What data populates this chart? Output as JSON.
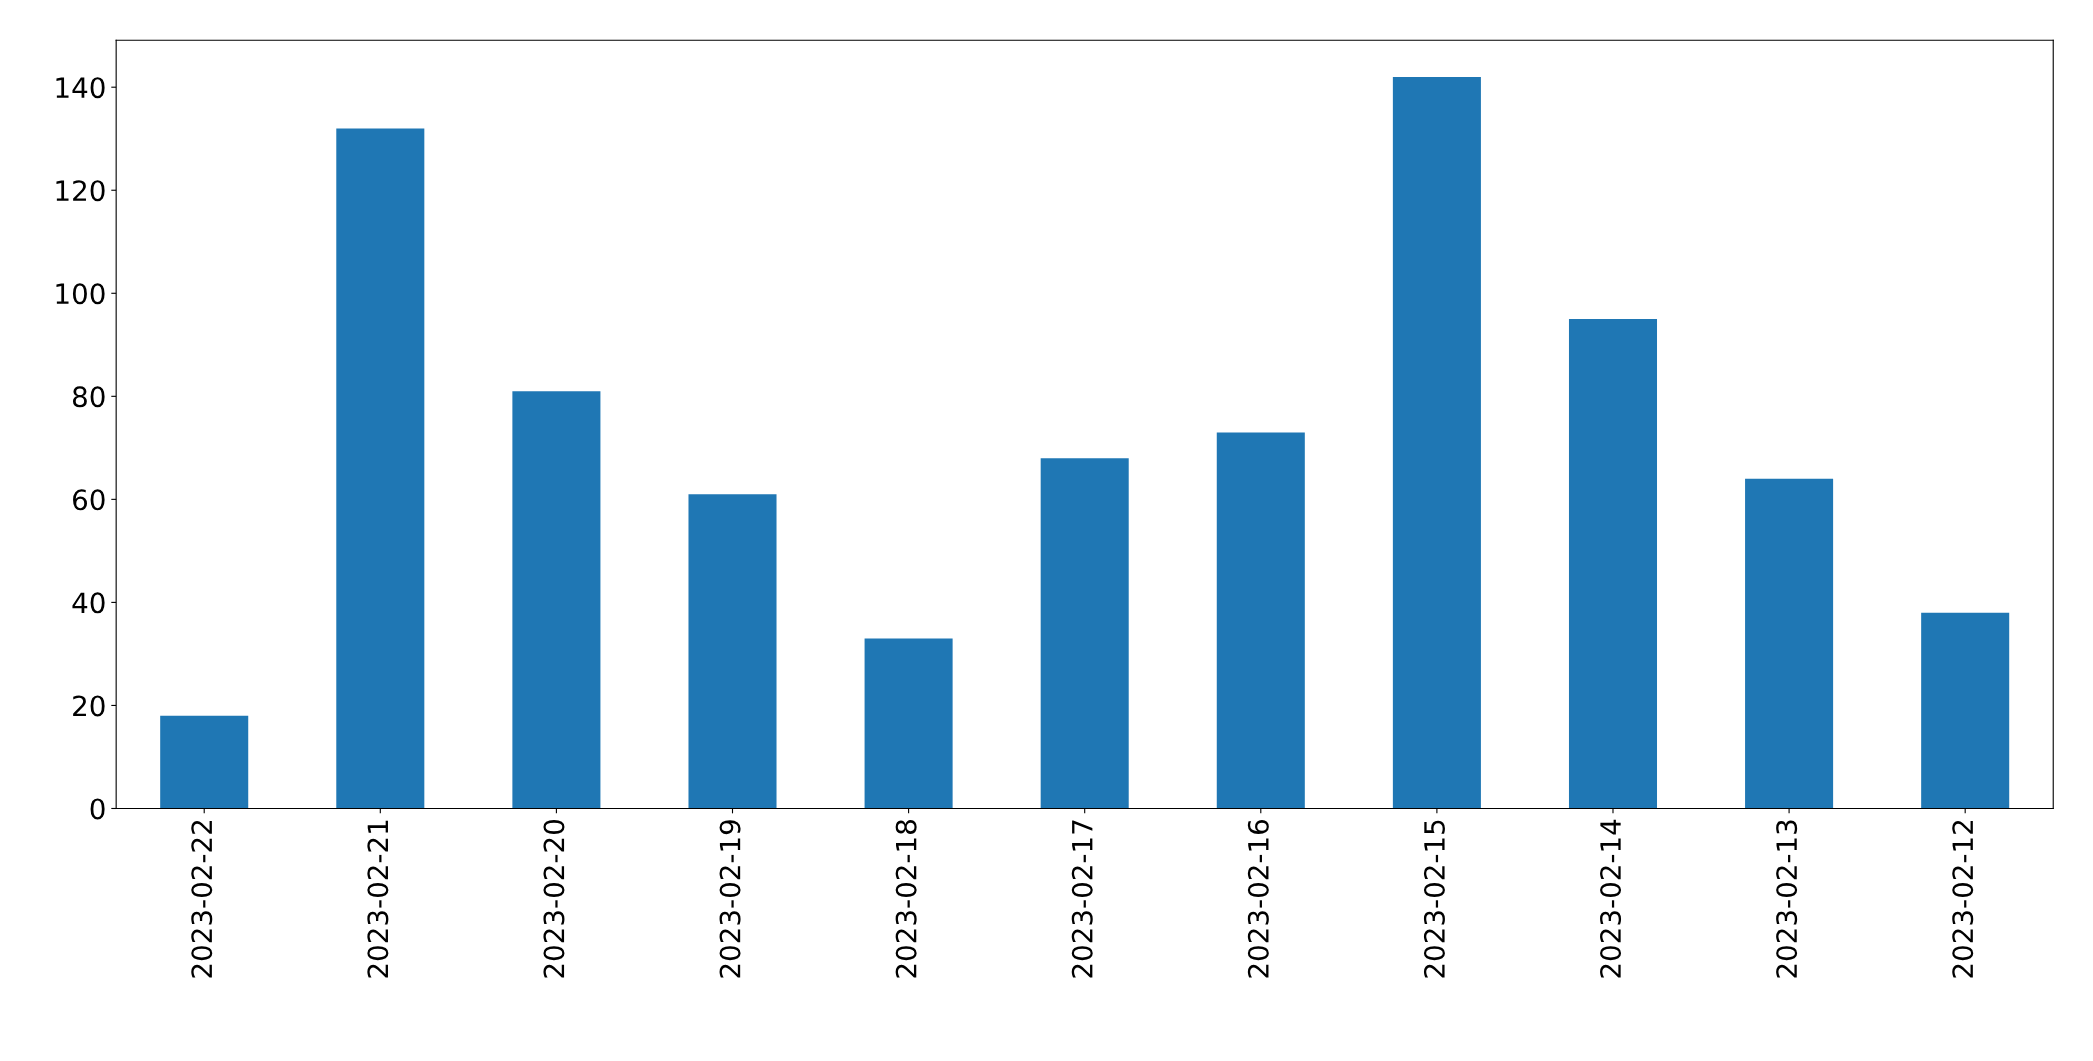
{
  "chart_data": {
    "type": "bar",
    "categories": [
      "2023-02-22",
      "2023-02-21",
      "2023-02-20",
      "2023-02-19",
      "2023-02-18",
      "2023-02-17",
      "2023-02-16",
      "2023-02-15",
      "2023-02-14",
      "2023-02-13",
      "2023-02-12"
    ],
    "values": [
      18,
      132,
      81,
      61,
      33,
      68,
      73,
      142,
      95,
      64,
      38
    ],
    "color": "#1f77b4",
    "ylim": [
      0,
      149.1
    ],
    "yticks": [
      0,
      20,
      40,
      60,
      80,
      100,
      120,
      140
    ],
    "grid": false,
    "legend": false
  }
}
